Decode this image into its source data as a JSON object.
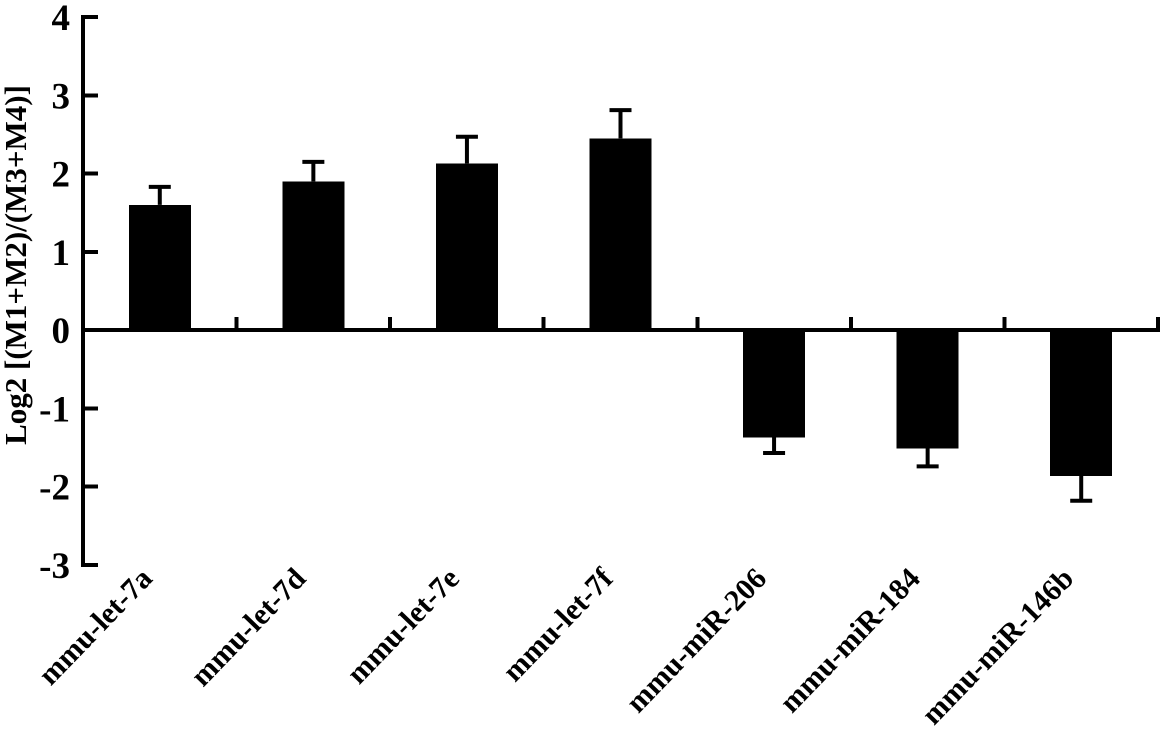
{
  "page": {
    "background": "#ffffff",
    "ink": "#000000"
  },
  "chart_data": {
    "type": "bar",
    "title": "",
    "xlabel": "",
    "ylabel": "Log2  [(M1+M2)/(M3+M4)]",
    "categories": [
      "mmu-let-7a",
      "mmu-let-7d",
      "mmu-let-7e",
      "mmu-let-7f",
      "mmu-miR-206",
      "mmu-miR-184",
      "mmu-miR-146b"
    ],
    "values": [
      1.6,
      1.9,
      2.13,
      2.45,
      -1.37,
      -1.51,
      -1.86
    ],
    "errors": [
      0.23,
      0.25,
      0.34,
      0.36,
      0.2,
      0.23,
      0.32
    ],
    "error_bar_style": "one-sided, extending away from zero, with end cap",
    "ylim": [
      -3,
      4
    ],
    "yticks": [
      4,
      3,
      2,
      1,
      0,
      -1,
      -2,
      -3
    ],
    "ytick_labels": [
      "4",
      "3",
      "2",
      "1",
      "0",
      "-1",
      "-2",
      "-3"
    ],
    "x_tick_position": "between-categories",
    "x_label_rotation_deg": 45,
    "grid": false,
    "legend": null,
    "bar_color": "#000000",
    "axis_color": "#000000",
    "background_color": "#ffffff"
  }
}
